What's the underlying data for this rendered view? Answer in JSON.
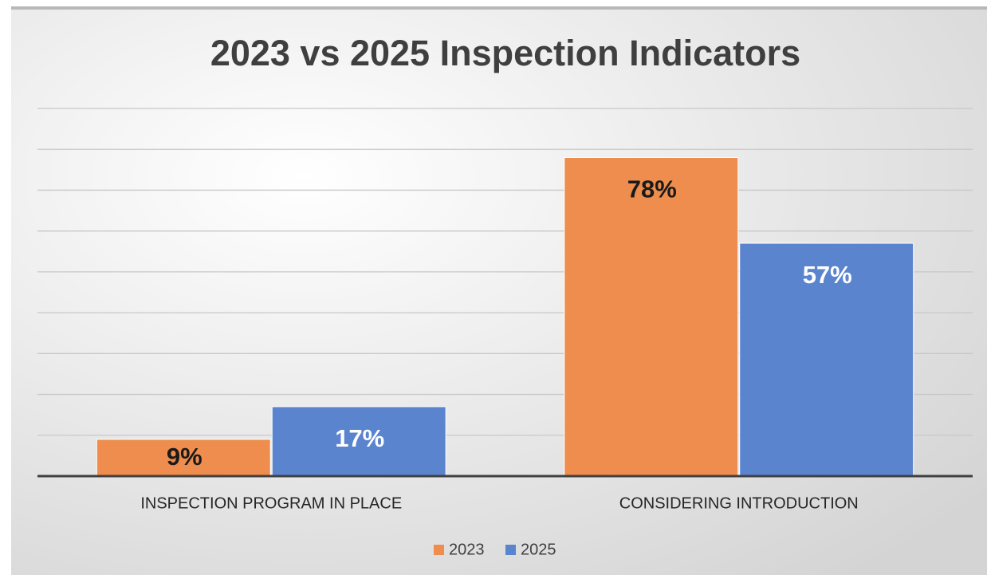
{
  "chart_data": {
    "type": "bar",
    "title": "2023 vs 2025 Inspection Indicators",
    "categories": [
      "INSPECTION PROGRAM IN PLACE",
      "CONSIDERING INTRODUCTION"
    ],
    "series": [
      {
        "name": "2023",
        "color": "#ee8d4d",
        "values": [
          9,
          78
        ],
        "value_labels": [
          "9%",
          "78%"
        ]
      },
      {
        "name": "2025",
        "color": "#5b84cf",
        "values": [
          17,
          57
        ],
        "value_labels": [
          "17%",
          "57%"
        ]
      }
    ],
    "ylim": [
      0,
      90
    ],
    "ygrid": [
      10,
      20,
      30,
      40,
      50,
      60,
      70,
      80,
      90
    ],
    "grid": true,
    "legend": "bottom"
  }
}
